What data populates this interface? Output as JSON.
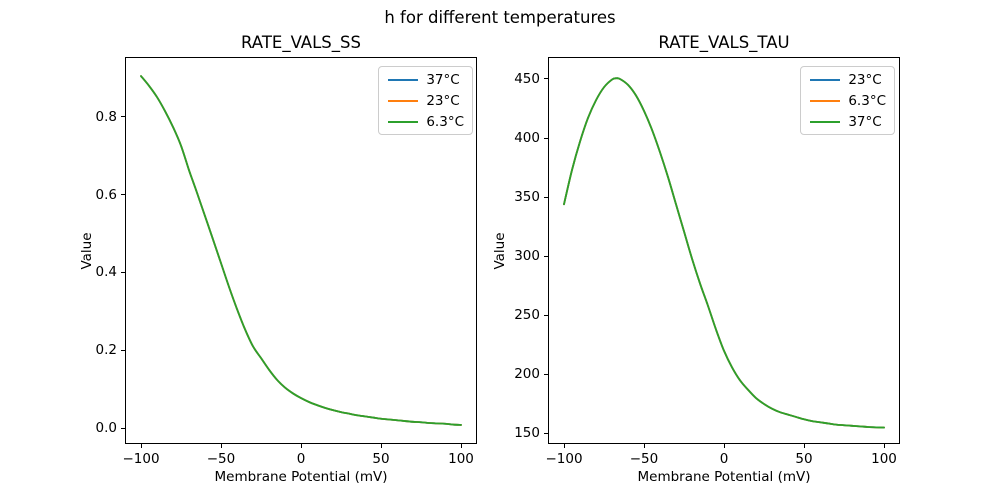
{
  "figure": {
    "title": "h for different temperatures",
    "background": "#ffffff",
    "text_color": "#000000"
  },
  "chart_data": [
    {
      "type": "line",
      "title": "RATE_VALS_SS",
      "xlabel": "Membrane Potential (mV)",
      "ylabel": "Value",
      "xlim": [
        -110,
        110
      ],
      "ylim": [
        -0.041,
        0.954
      ],
      "xticks": [
        -100,
        -50,
        0,
        50,
        100
      ],
      "xtick_labels": [
        "−100",
        "−50",
        "0",
        "50",
        "100"
      ],
      "yticks": [
        0.0,
        0.2,
        0.4,
        0.6,
        0.8
      ],
      "ytick_labels": [
        "0.0",
        "0.2",
        "0.4",
        "0.6",
        "0.8"
      ],
      "grid": false,
      "legend_position": "upper right",
      "series": [
        {
          "name": "37°C",
          "color": "#1f77b4"
        },
        {
          "name": "23°C",
          "color": "#ff7f0e"
        },
        {
          "name": "6.3°C",
          "color": "#2ca02c"
        }
      ],
      "series_note": "all three temperature curves overlap exactly; only the last-drawn green curve is visible",
      "x": [
        -100,
        -95,
        -90,
        -85,
        -80,
        -75,
        -70,
        -67.5,
        -65,
        -60,
        -55,
        -50,
        -45,
        -40,
        -35,
        -30,
        -25,
        -20,
        -15,
        -10,
        -5,
        0,
        5,
        10,
        15,
        20,
        25,
        30,
        35,
        40,
        45,
        50,
        55,
        60,
        65,
        70,
        75,
        80,
        85,
        90,
        95,
        100
      ],
      "values": [
        0.905,
        0.88,
        0.851,
        0.815,
        0.774,
        0.726,
        0.663,
        0.634,
        0.605,
        0.545,
        0.485,
        0.424,
        0.363,
        0.306,
        0.254,
        0.21,
        0.18,
        0.15,
        0.124,
        0.104,
        0.089,
        0.077,
        0.067,
        0.059,
        0.052,
        0.046,
        0.041,
        0.037,
        0.033,
        0.03,
        0.027,
        0.024,
        0.022,
        0.02,
        0.018,
        0.016,
        0.015,
        0.013,
        0.012,
        0.011,
        0.009,
        0.008
      ]
    },
    {
      "type": "line",
      "title": "RATE_VALS_TAU",
      "xlabel": "Membrane Potential (mV)",
      "ylabel": "Value",
      "xlim": [
        -110,
        110
      ],
      "ylim": [
        141.1,
        468.6
      ],
      "xticks": [
        -100,
        -50,
        0,
        50,
        100
      ],
      "xtick_labels": [
        "−100",
        "−50",
        "0",
        "50",
        "100"
      ],
      "yticks": [
        150,
        200,
        250,
        300,
        350,
        400,
        450
      ],
      "ytick_labels": [
        "150",
        "200",
        "250",
        "300",
        "350",
        "400",
        "450"
      ],
      "grid": false,
      "legend_position": "upper right",
      "series": [
        {
          "name": "23°C",
          "color": "#1f77b4"
        },
        {
          "name": "6.3°C",
          "color": "#ff7f0e"
        },
        {
          "name": "37°C",
          "color": "#2ca02c"
        }
      ],
      "series_note": "all three temperature curves overlap exactly; only the last-drawn green curve is visible",
      "x": [
        -100,
        -95,
        -90,
        -85,
        -80,
        -75,
        -70,
        -67.5,
        -65,
        -60,
        -55,
        -50,
        -45,
        -40,
        -35,
        -30,
        -25,
        -20,
        -15,
        -10,
        -5,
        0,
        5,
        10,
        15,
        20,
        25,
        30,
        35,
        40,
        45,
        50,
        55,
        60,
        65,
        70,
        75,
        80,
        85,
        90,
        95,
        100
      ],
      "values": [
        344,
        373,
        397,
        417,
        432,
        443,
        449.5,
        450.6,
        450,
        445,
        436,
        423,
        407,
        388,
        367,
        344,
        321,
        298,
        277,
        258,
        238,
        220,
        206,
        195,
        187,
        180,
        175,
        171,
        168,
        166,
        164,
        162,
        160.5,
        159.5,
        158.5,
        157.5,
        157,
        156.5,
        156,
        155.5,
        155.2,
        155
      ]
    }
  ]
}
